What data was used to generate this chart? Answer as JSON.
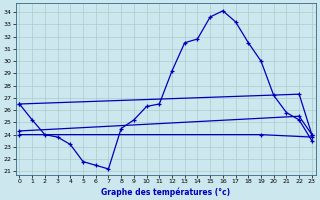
{
  "bg_color": "#cce8ee",
  "grid_color": "#aacccc",
  "line_color": "#0000bb",
  "xlabel": "Graphe des températures (°c)",
  "xlim": [
    -0.3,
    23.3
  ],
  "ylim": [
    20.7,
    34.7
  ],
  "xticks": [
    0,
    1,
    2,
    3,
    4,
    5,
    6,
    7,
    8,
    9,
    10,
    11,
    12,
    13,
    14,
    15,
    16,
    17,
    18,
    19,
    20,
    21,
    22,
    23
  ],
  "yticks": [
    21,
    22,
    23,
    24,
    25,
    26,
    27,
    28,
    29,
    30,
    31,
    32,
    33,
    34
  ],
  "curve1_x": [
    0,
    1,
    2,
    3,
    4,
    5,
    6,
    7,
    8,
    9,
    10,
    11,
    12,
    13,
    14,
    15,
    16,
    17,
    18,
    19,
    20,
    21,
    22,
    23
  ],
  "curve1_y": [
    26.5,
    25.2,
    24.0,
    23.8,
    23.2,
    21.8,
    21.5,
    21.2,
    24.5,
    25.2,
    26.3,
    26.5,
    29.2,
    31.5,
    31.8,
    33.6,
    34.1,
    33.2,
    31.5,
    30.0,
    27.2,
    25.8,
    25.2,
    23.5
  ],
  "line2_x": [
    0,
    22,
    23
  ],
  "line2_y": [
    26.5,
    27.3,
    24.0
  ],
  "line3_x": [
    0,
    22,
    23
  ],
  "line3_y": [
    24.3,
    25.5,
    24.0
  ],
  "line4_x": [
    0,
    19,
    23
  ],
  "line4_y": [
    24.0,
    24.0,
    23.8
  ]
}
